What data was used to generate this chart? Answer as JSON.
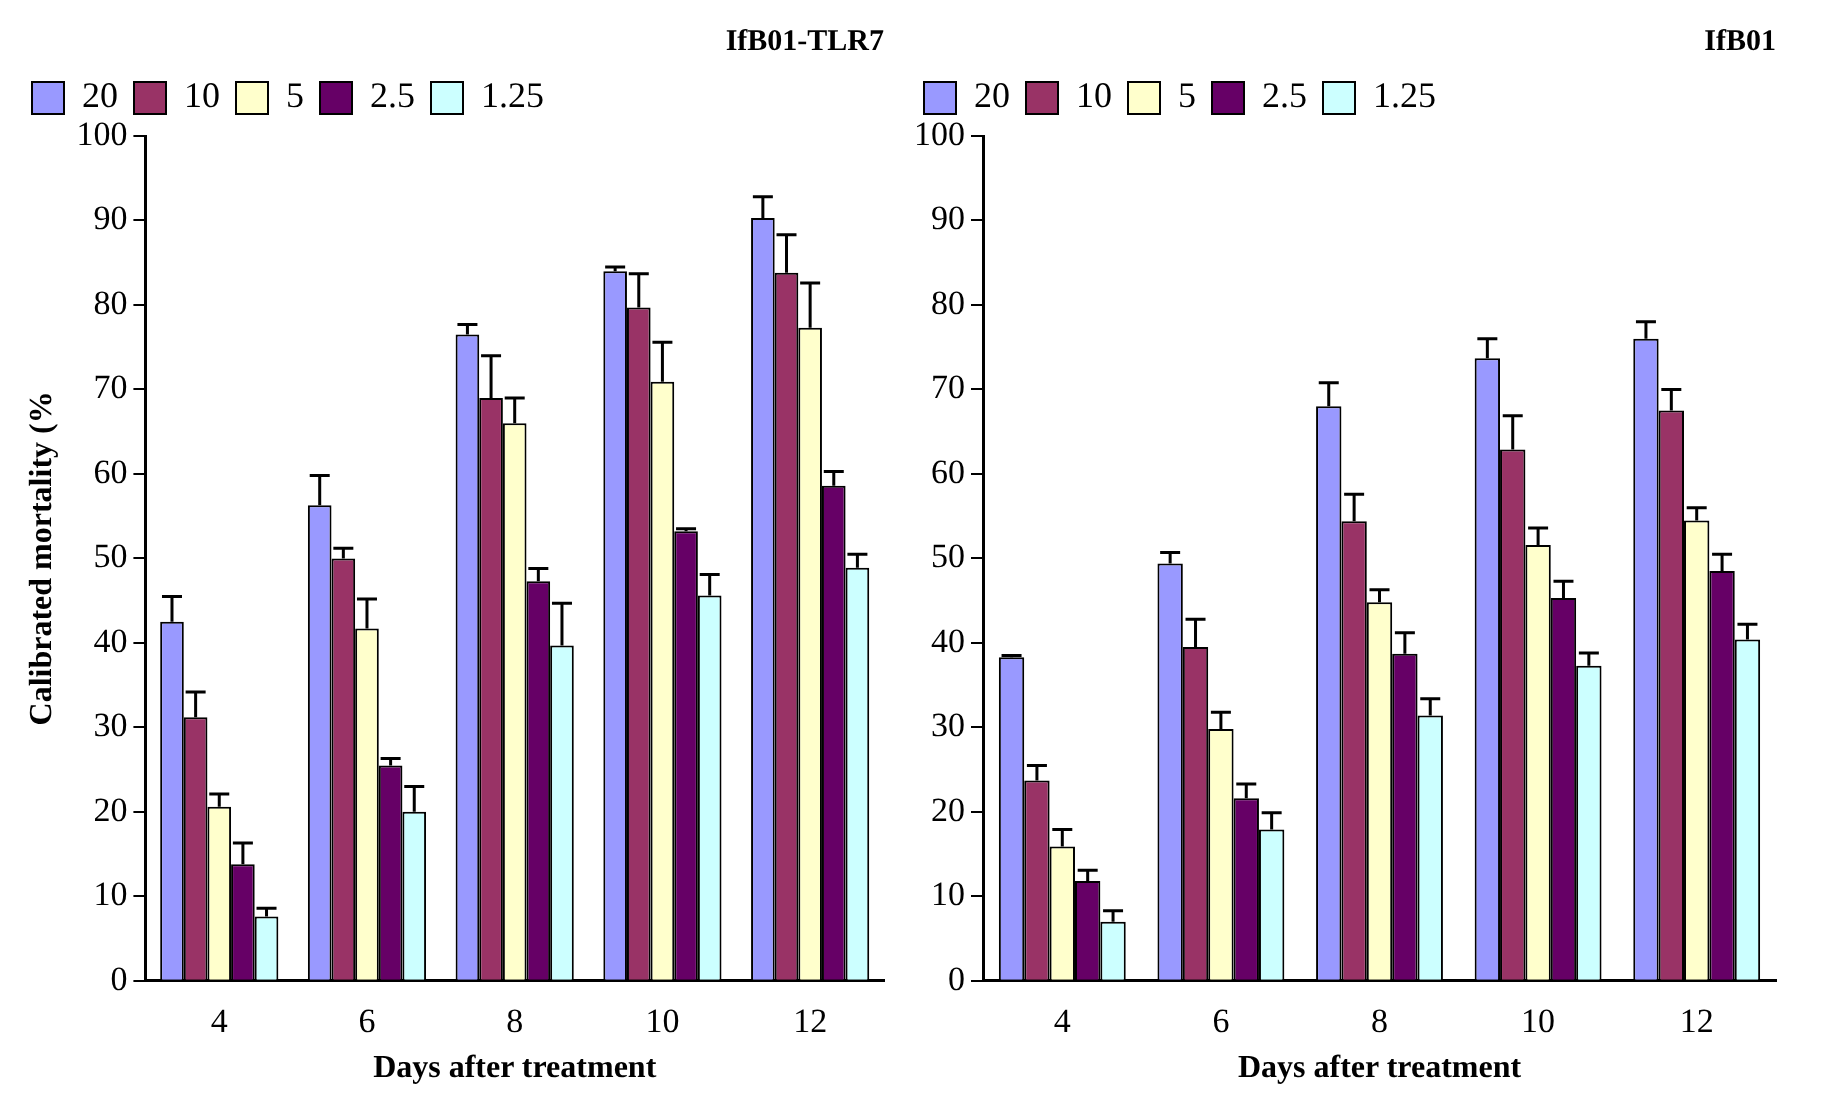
{
  "chart_data": [
    {
      "type": "bar",
      "title": "IfB01-TLR7",
      "xlabel": "Days after treatment",
      "ylabel": "Calibrated mortality (%",
      "categories": [
        "4",
        "6",
        "8",
        "10",
        "12"
      ],
      "ylim": [
        0,
        100
      ],
      "yticks": [
        0,
        10,
        20,
        30,
        40,
        50,
        60,
        70,
        80,
        90,
        100
      ],
      "grid": false,
      "legend": "top left",
      "series": [
        {
          "name": "20",
          "color": "#9999ff",
          "values": [
            42.5,
            56.3,
            76.5,
            84,
            90.3
          ],
          "errors": [
            [
              42.5,
              45.5
            ],
            [
              56.3,
              59.8
            ],
            [
              76.5,
              77.7
            ],
            [
              84,
              84.5
            ],
            [
              90.3,
              92.8
            ]
          ]
        },
        {
          "name": "10",
          "color": "#993366",
          "values": [
            31.2,
            50,
            69,
            79.7,
            83.8
          ],
          "errors": [
            [
              31.2,
              34.2
            ],
            [
              50,
              51.2
            ],
            [
              69,
              74
            ],
            [
              79.7,
              83.7
            ],
            [
              83.8,
              88.3
            ]
          ]
        },
        {
          "name": "5",
          "color": "#ffffcc",
          "values": [
            20.6,
            41.7,
            66,
            70.9,
            77.3
          ],
          "errors": [
            [
              20.6,
              22.1
            ],
            [
              41.7,
              45.2
            ],
            [
              66,
              69
            ],
            [
              70.9,
              75.6
            ],
            [
              77.3,
              82.6
            ]
          ]
        },
        {
          "name": "2.5",
          "color": "#660066",
          "values": [
            13.8,
            25.5,
            47.3,
            53.2,
            58.6
          ],
          "errors": [
            [
              13.8,
              16.3
            ],
            [
              25.5,
              26.3
            ],
            [
              47.3,
              48.8
            ],
            [
              53.2,
              53.5
            ],
            [
              58.6,
              60.3
            ]
          ]
        },
        {
          "name": "1.25",
          "color": "#ccffff",
          "values": [
            7.6,
            20,
            39.7,
            45.6,
            48.9
          ],
          "errors": [
            [
              7.6,
              8.6
            ],
            [
              20,
              23
            ],
            [
              39.7,
              44.7
            ],
            [
              45.6,
              48.1
            ],
            [
              48.9,
              50.5
            ]
          ]
        }
      ]
    },
    {
      "type": "bar",
      "title": "IfB01",
      "xlabel": "Days after treatment",
      "categories": [
        "4",
        "6",
        "8",
        "10",
        "12"
      ],
      "ylim": [
        0,
        100
      ],
      "yticks": [
        0,
        10,
        20,
        30,
        40,
        50,
        60,
        70,
        80,
        90,
        100
      ],
      "grid": false,
      "legend": "top left",
      "series": [
        {
          "name": "20",
          "color": "#9999ff",
          "values": [
            38.3,
            49.4,
            68,
            73.7,
            76
          ],
          "errors": [
            [
              38.3,
              38.5
            ],
            [
              49.4,
              50.7
            ],
            [
              68,
              70.8
            ],
            [
              73.7,
              76
            ],
            [
              76,
              78
            ]
          ]
        },
        {
          "name": "10",
          "color": "#993366",
          "values": [
            23.7,
            39.5,
            54.4,
            62.9,
            67.5
          ],
          "errors": [
            [
              23.7,
              25.5
            ],
            [
              39.5,
              42.8
            ],
            [
              54.4,
              57.6
            ],
            [
              62.9,
              66.9
            ],
            [
              67.5,
              70
            ]
          ]
        },
        {
          "name": "5",
          "color": "#ffffcc",
          "values": [
            15.9,
            29.8,
            44.8,
            51.6,
            54.5
          ],
          "errors": [
            [
              15.9,
              17.9
            ],
            [
              29.8,
              31.8
            ],
            [
              44.8,
              46.3
            ],
            [
              51.6,
              53.6
            ],
            [
              54.5,
              56
            ]
          ]
        },
        {
          "name": "2.5",
          "color": "#660066",
          "values": [
            11.8,
            21.6,
            38.7,
            45.3,
            48.5
          ],
          "errors": [
            [
              11.8,
              13.1
            ],
            [
              21.6,
              23.3
            ],
            [
              38.7,
              41.2
            ],
            [
              45.3,
              47.3
            ],
            [
              48.5,
              50.5
            ]
          ]
        },
        {
          "name": "1.25",
          "color": "#ccffff",
          "values": [
            7,
            17.9,
            31.4,
            37.3,
            40.4
          ],
          "errors": [
            [
              7,
              8.3
            ],
            [
              17.9,
              19.9
            ],
            [
              31.4,
              33.4
            ],
            [
              37.3,
              38.8
            ],
            [
              40.4,
              42.2
            ]
          ]
        }
      ]
    }
  ]
}
